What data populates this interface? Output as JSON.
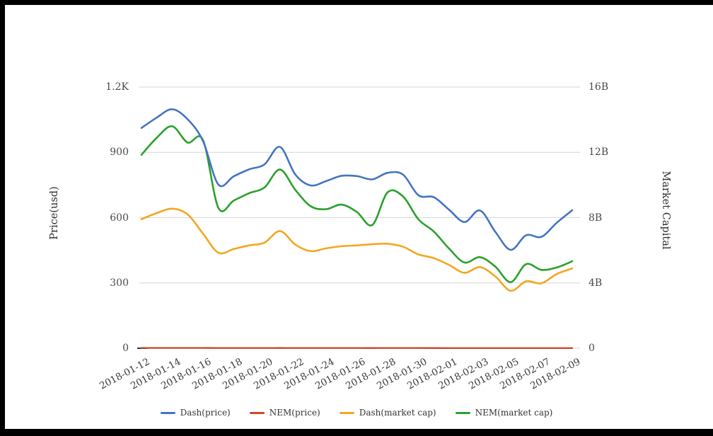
{
  "colors": {
    "frame": "#000000",
    "background": "#ffffff",
    "grid": "#d6d6d6",
    "tick_text": "#4a4a4a",
    "axis_stub": "#333333"
  },
  "chart_data": {
    "type": "line",
    "title": "",
    "legend_position": "bottom",
    "grid": true,
    "x": [
      "2018-01-12",
      "2018-01-13",
      "2018-01-14",
      "2018-01-15",
      "2018-01-16",
      "2018-01-17",
      "2018-01-18",
      "2018-01-19",
      "2018-01-20",
      "2018-01-21",
      "2018-01-22",
      "2018-01-23",
      "2018-01-24",
      "2018-01-25",
      "2018-01-26",
      "2018-01-27",
      "2018-01-28",
      "2018-01-29",
      "2018-01-30",
      "2018-01-31",
      "2018-02-01",
      "2018-02-02",
      "2018-02-03",
      "2018-02-04",
      "2018-02-05",
      "2018-02-06",
      "2018-02-07",
      "2018-02-08",
      "2018-02-09"
    ],
    "x_tick_labels": [
      "2018-01-12",
      "2018-01-14",
      "2018-01-16",
      "2018-01-18",
      "2018-01-20",
      "2018-01-22",
      "2018-01-24",
      "2018-01-26",
      "2018-01-28",
      "2018-01-30",
      "2018-02-01",
      "2018-02-03",
      "2018-02-05",
      "2018-02-07",
      "2018-02-09"
    ],
    "left_axis": {
      "title": "Price(usd)",
      "unit": "USD",
      "range": [
        0,
        1200
      ],
      "ticks_top_to_bottom": [
        "1.2K",
        "900",
        "600",
        "300",
        "0"
      ]
    },
    "right_axis": {
      "title": "Market Capital",
      "unit": "billion USD",
      "range": [
        0,
        16
      ],
      "ticks_top_to_bottom": [
        "16B",
        "12B",
        "8B",
        "4B",
        "0"
      ]
    },
    "series": [
      {
        "name": "Dash(price)",
        "axis": "left",
        "color": "#4574c1",
        "values": [
          1012,
          1060,
          1098,
          1052,
          952,
          752,
          790,
          822,
          845,
          925,
          798,
          748,
          768,
          792,
          791,
          776,
          806,
          798,
          703,
          694,
          636,
          580,
          633,
          535,
          452,
          519,
          512,
          577,
          634
        ]
      },
      {
        "name": "NEM(price)",
        "axis": "left",
        "color": "#cd4a28",
        "values": [
          1.32,
          1.43,
          1.51,
          1.4,
          1.42,
          0.96,
          1.01,
          1.06,
          1.09,
          1.22,
          1.08,
          0.97,
          0.95,
          0.98,
          0.93,
          0.84,
          1.06,
          1.03,
          0.88,
          0.79,
          0.68,
          0.58,
          0.62,
          0.56,
          0.45,
          0.57,
          0.53,
          0.55,
          0.59
        ]
      },
      {
        "name": "Dash(market cap)",
        "axis": "right",
        "color": "#f2a71f",
        "values": [
          7.9,
          8.28,
          8.55,
          8.2,
          7.02,
          5.85,
          6.08,
          6.3,
          6.47,
          7.18,
          6.35,
          5.95,
          6.12,
          6.25,
          6.3,
          6.37,
          6.4,
          6.22,
          5.75,
          5.52,
          5.1,
          4.62,
          4.97,
          4.4,
          3.52,
          4.1,
          3.98,
          4.55,
          4.89
        ]
      },
      {
        "name": "NEM(market cap)",
        "axis": "right",
        "color": "#2ca02c",
        "values": [
          11.85,
          12.9,
          13.6,
          12.6,
          12.75,
          8.6,
          9.05,
          9.5,
          9.85,
          10.95,
          9.7,
          8.7,
          8.52,
          8.8,
          8.35,
          7.55,
          9.55,
          9.3,
          7.9,
          7.15,
          6.1,
          5.25,
          5.58,
          5.0,
          4.05,
          5.15,
          4.8,
          4.95,
          5.33
        ]
      }
    ]
  }
}
